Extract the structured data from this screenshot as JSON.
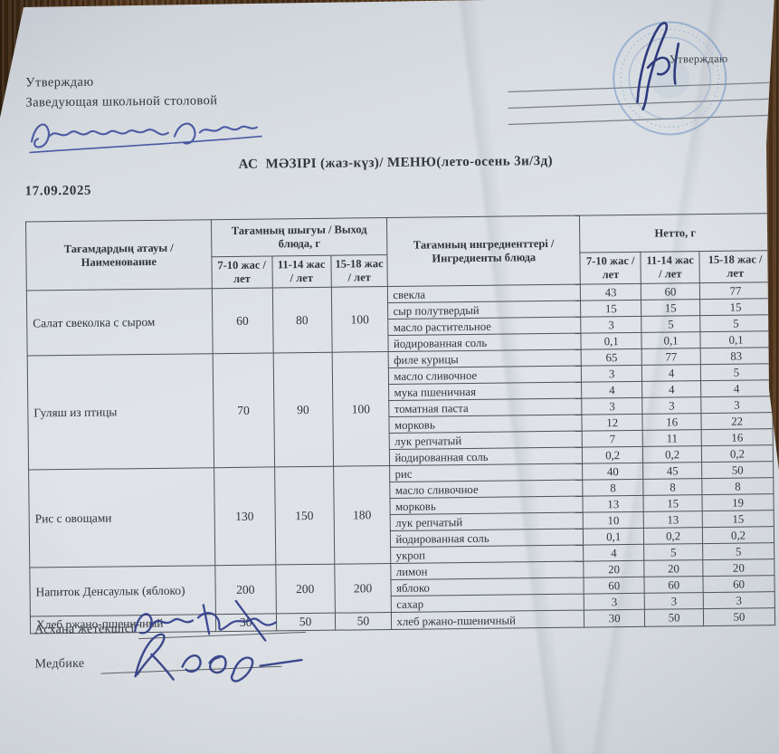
{
  "document": {
    "approved_left": {
      "line1": "Утверждаю",
      "line2": "Заведующая школьной столовой"
    },
    "approved_right": {
      "label": "Утверждаю"
    },
    "title": "АС  МӘЗІРІ (жаз-күз)/ МЕНЮ(лето-осень 3и/3д)",
    "date": "17.09.2025",
    "footer": {
      "canteen_head_label": "Асхана жетекшісі",
      "nurse_label": "Медбике"
    }
  },
  "table": {
    "headers": {
      "dish_name": "Тағамдардың атауы / Наименование",
      "output": "Тағамның шығуы / Выход блюда, г",
      "ingredients": "Тағамның ингредиенттері / Ингредиенты блюда",
      "netto": "Нетто, г",
      "age_columns": [
        "7-10 жас / лет",
        "11-14 жас / лет",
        "15-18 жас / лет"
      ]
    },
    "dishes": [
      {
        "name": "Салат свеколка с сыром",
        "output": [
          "60",
          "80",
          "100"
        ],
        "ingredients": [
          {
            "name": "свекла",
            "netto": [
              "43",
              "60",
              "77"
            ]
          },
          {
            "name": "сыр полутвердый",
            "netto": [
              "15",
              "15",
              "15"
            ]
          },
          {
            "name": "масло растительное",
            "netto": [
              "3",
              "5",
              "5"
            ]
          },
          {
            "name": "йодированная соль",
            "netto": [
              "0,1",
              "0,1",
              "0,1"
            ]
          }
        ]
      },
      {
        "name": "Гуляш из птицы",
        "output": [
          "70",
          "90",
          "100"
        ],
        "ingredients": [
          {
            "name": "филе курицы",
            "netto": [
              "65",
              "77",
              "83"
            ]
          },
          {
            "name": "масло сливочное",
            "netto": [
              "3",
              "4",
              "5"
            ]
          },
          {
            "name": "мука пшеничная",
            "netto": [
              "4",
              "4",
              "4"
            ]
          },
          {
            "name": "томатная паста",
            "netto": [
              "3",
              "3",
              "3"
            ]
          },
          {
            "name": "морковь",
            "netto": [
              "12",
              "16",
              "22"
            ]
          },
          {
            "name": "лук репчатый",
            "netto": [
              "7",
              "11",
              "16"
            ]
          },
          {
            "name": "йодированная соль",
            "netto": [
              "0,2",
              "0,2",
              "0,2"
            ]
          }
        ]
      },
      {
        "name": "Рис с овощами",
        "output": [
          "130",
          "150",
          "180"
        ],
        "ingredients": [
          {
            "name": "рис",
            "netto": [
              "40",
              "45",
              "50"
            ]
          },
          {
            "name": "масло сливочное",
            "netto": [
              "8",
              "8",
              "8"
            ]
          },
          {
            "name": "морковь",
            "netto": [
              "13",
              "15",
              "19"
            ]
          },
          {
            "name": "лук репчатый",
            "netto": [
              "10",
              "13",
              "15"
            ]
          },
          {
            "name": "йодированная соль",
            "netto": [
              "0,1",
              "0,2",
              "0,2"
            ]
          },
          {
            "name": "укроп",
            "netto": [
              "4",
              "5",
              "5"
            ]
          }
        ]
      },
      {
        "name": "Напиток Денсаулык (яблоко)",
        "output": [
          "200",
          "200",
          "200"
        ],
        "ingredients": [
          {
            "name": "лимон",
            "netto": [
              "20",
              "20",
              "20"
            ]
          },
          {
            "name": "яблоко",
            "netto": [
              "60",
              "60",
              "60"
            ]
          },
          {
            "name": "сахар",
            "netto": [
              "3",
              "3",
              "3"
            ]
          }
        ]
      },
      {
        "name": "Хлеб ржано-пшеничный",
        "output": [
          "30",
          "50",
          "50"
        ],
        "ingredients": [
          {
            "name": "хлеб ржано-пшеничный",
            "netto": [
              "30",
              "50",
              "50"
            ]
          }
        ]
      }
    ]
  },
  "colors": {
    "ink_blue": "#3c4c9c",
    "stamp_blue": "#6e8fc3",
    "paper": "#dbe0e5",
    "wood": "#4e3520",
    "table_line": "#4d5358",
    "text": "#31373d"
  }
}
